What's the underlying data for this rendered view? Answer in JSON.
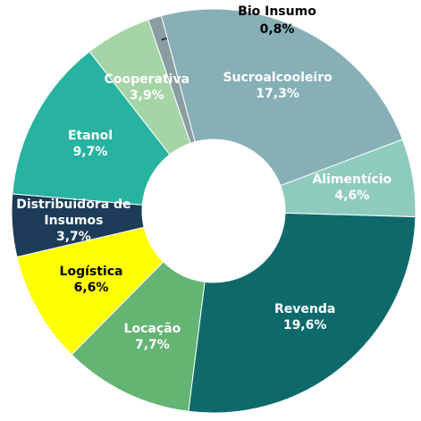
{
  "chart_data": {
    "type": "donut",
    "categories": [
      "Bio Insumo",
      "Sucroalcooleiro",
      "Alimentício",
      "Revenda",
      "Locação",
      "Logística",
      "Distribuidora de Insumos",
      "Etanol",
      "Cooperativa"
    ],
    "values": [
      0.8,
      17.3,
      4.6,
      19.6,
      7.7,
      6.6,
      3.7,
      9.7,
      3.9
    ],
    "value_labels": [
      "0,8%",
      "17,3%",
      "4,6%",
      "19,6%",
      "7,7%",
      "6,6%",
      "3,7%",
      "9,7%",
      "3,9%"
    ],
    "colors": [
      "#8a9da1",
      "#86afb7",
      "#8fcbbd",
      "#0e6a6a",
      "#64b473",
      "#ffff00",
      "#1c3c58",
      "#27b3a0",
      "#a5d4a7"
    ],
    "label_colors": [
      "#000000",
      "#ffffff",
      "#ffffff",
      "#ffffff",
      "#ffffff",
      "#000000",
      "#ffffff",
      "#ffffff",
      "#ffffff"
    ]
  }
}
